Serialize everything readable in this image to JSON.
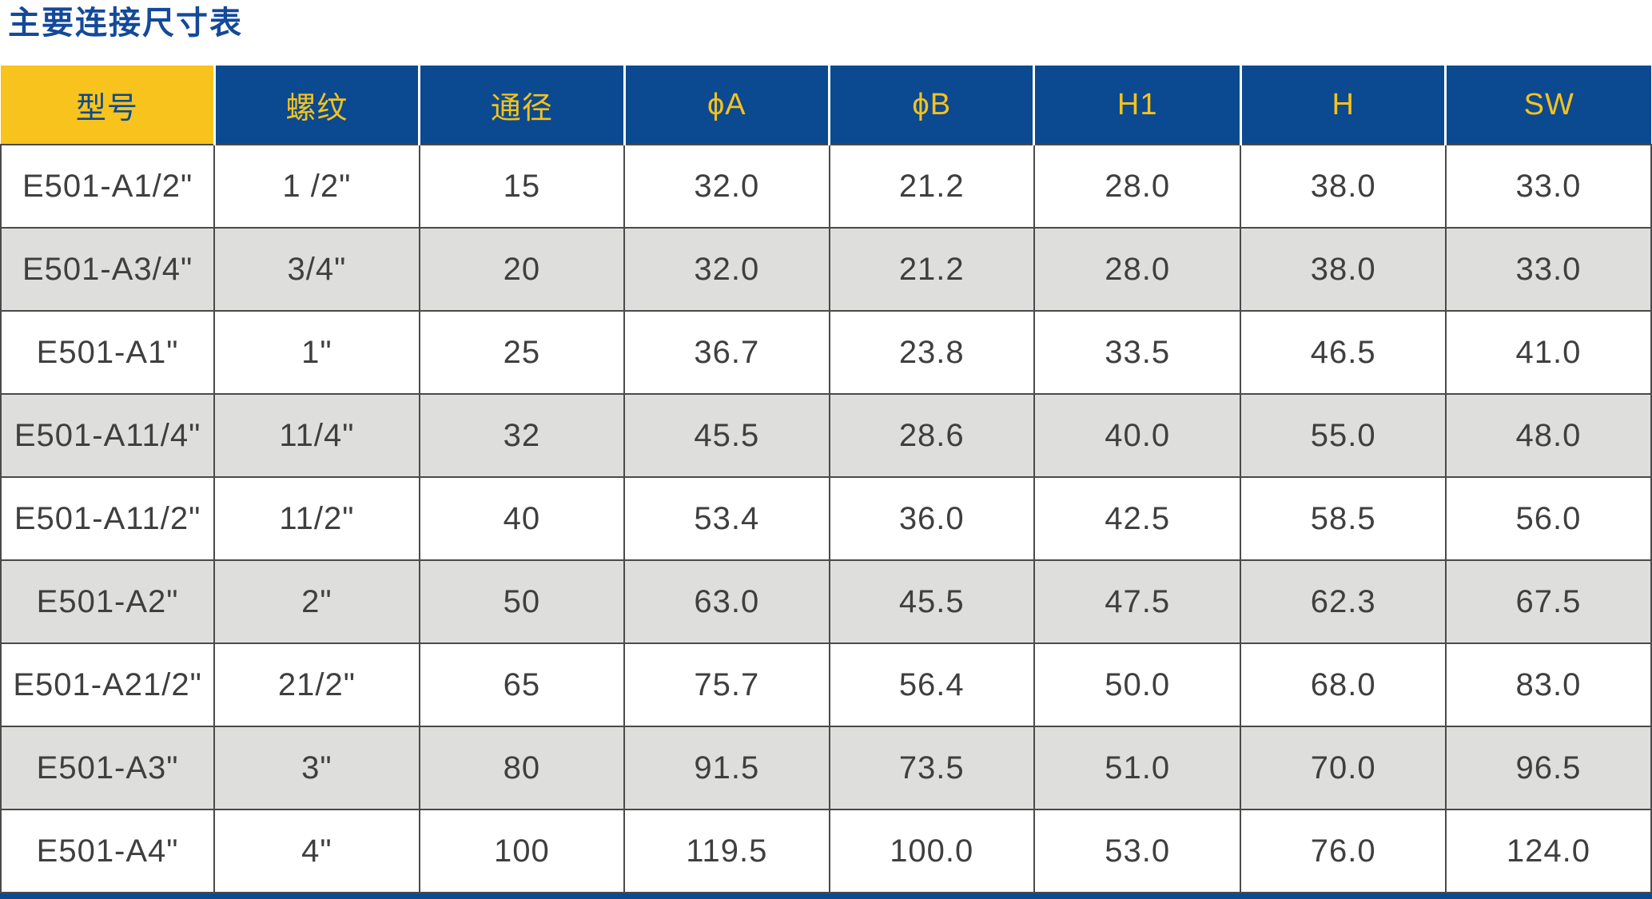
{
  "page": {
    "title": "主要连接尺寸表"
  },
  "colors": {
    "header_blue": "#0B4A90",
    "header_yellow": "#F8C31C",
    "header_text_yellow": "#F5C21E",
    "title_blue": "#14499A",
    "alt_row_gray": "#DEDEDC",
    "cell_border": "#4A4A4A",
    "data_text": "#3F3F3F"
  },
  "table": {
    "columns": [
      {
        "key": "model",
        "label": "型号"
      },
      {
        "key": "thread",
        "label": "螺纹"
      },
      {
        "key": "dn",
        "label": "通径"
      },
      {
        "key": "phi_a",
        "label": "ϕA"
      },
      {
        "key": "phi_b",
        "label": "ϕB"
      },
      {
        "key": "h1",
        "label": "H1"
      },
      {
        "key": "h",
        "label": "H"
      },
      {
        "key": "sw",
        "label": "SW"
      }
    ],
    "rows": [
      [
        "E501-A1/2\"",
        "1 /2\"",
        "15",
        "32.0",
        "21.2",
        "28.0",
        "38.0",
        "33.0"
      ],
      [
        "E501-A3/4\"",
        "3/4\"",
        "20",
        "32.0",
        "21.2",
        "28.0",
        "38.0",
        "33.0"
      ],
      [
        "E501-A1\"",
        "1\"",
        "25",
        "36.7",
        "23.8",
        "33.5",
        "46.5",
        "41.0"
      ],
      [
        "E501-A11/4\"",
        "11/4\"",
        "32",
        "45.5",
        "28.6",
        "40.0",
        "55.0",
        "48.0"
      ],
      [
        "E501-A11/2\"",
        "11/2\"",
        "40",
        "53.4",
        "36.0",
        "42.5",
        "58.5",
        "56.0"
      ],
      [
        "E501-A2\"",
        "2\"",
        "50",
        "63.0",
        "45.5",
        "47.5",
        "62.3",
        "67.5"
      ],
      [
        "E501-A21/2\"",
        "21/2\"",
        "65",
        "75.7",
        "56.4",
        "50.0",
        "68.0",
        "83.0"
      ],
      [
        "E501-A3\"",
        "3\"",
        "80",
        "91.5",
        "73.5",
        "51.0",
        "70.0",
        "96.5"
      ],
      [
        "E501-A4\"",
        "4\"",
        "100",
        "119.5",
        "100.0",
        "53.0",
        "76.0",
        "124.0"
      ]
    ]
  }
}
